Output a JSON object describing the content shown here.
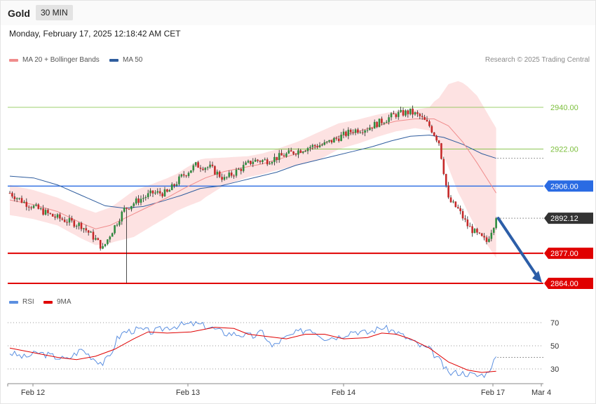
{
  "header": {
    "asset": "Gold",
    "timeframe": "30 MIN",
    "datetime": "Monday, February 17, 2025 12:18:42 AM CET"
  },
  "legend": {
    "ma20": "MA 20 + Bollinger Bands",
    "ma50": "MA 50",
    "credit": "Research © 2025 Trading Central"
  },
  "colors": {
    "ma20": "#f08c8c",
    "bands": "#fde2e2",
    "ma50": "#2f5d9e",
    "support": "#e00000",
    "resistance": "#7cbf3c",
    "pivot": "#2a6be3",
    "last": "#333333",
    "rsi": "#5b8fe0",
    "rsi_ma": "#e00000",
    "up": "#2e8b3e",
    "down": "#c62828",
    "arrow": "#2c5ea8"
  },
  "rsi_legend": {
    "rsi": "RSI",
    "ma": "9MA"
  },
  "chart_data": [
    {
      "type": "candlestick",
      "ylim": [
        2862,
        2955
      ],
      "x_labels": [
        "Feb 12",
        "Feb 13",
        "Feb 14",
        "Feb 17",
        "Mar 4"
      ],
      "levels": [
        {
          "label": "2940.00",
          "value": 2940.0,
          "kind": "resistance"
        },
        {
          "label": "2922.00",
          "value": 2922.0,
          "kind": "resistance"
        },
        {
          "label": "2906.00",
          "value": 2906.0,
          "kind": "pivot"
        },
        {
          "label": "2892.12",
          "value": 2892.12,
          "kind": "last"
        },
        {
          "label": "2877.00",
          "value": 2877.0,
          "kind": "support"
        },
        {
          "label": "2864.00",
          "value": 2864.0,
          "kind": "support"
        }
      ],
      "arrow": {
        "from": 2892.12,
        "to": 2864.0
      },
      "anchors": [
        [
          0,
          2903
        ],
        [
          6,
          2899
        ],
        [
          12,
          2896
        ],
        [
          18,
          2893
        ],
        [
          24,
          2891
        ],
        [
          30,
          2889
        ],
        [
          36,
          2883
        ],
        [
          39,
          2879
        ],
        [
          42,
          2885
        ],
        [
          48,
          2896
        ],
        [
          54,
          2900
        ],
        [
          60,
          2903
        ],
        [
          66,
          2903
        ],
        [
          72,
          2910
        ],
        [
          78,
          2915
        ],
        [
          84,
          2914
        ],
        [
          90,
          2909
        ],
        [
          96,
          2913
        ],
        [
          102,
          2917
        ],
        [
          108,
          2917
        ],
        [
          114,
          2919
        ],
        [
          120,
          2921
        ],
        [
          126,
          2923
        ],
        [
          132,
          2924
        ],
        [
          138,
          2927
        ],
        [
          144,
          2930
        ],
        [
          150,
          2931
        ],
        [
          156,
          2934
        ],
        [
          162,
          2937
        ],
        [
          168,
          2938
        ],
        [
          172,
          2936
        ],
        [
          176,
          2932
        ],
        [
          180,
          2925
        ],
        [
          184,
          2900
        ],
        [
          188,
          2896
        ],
        [
          192,
          2889
        ],
        [
          196,
          2885
        ],
        [
          200,
          2882
        ],
        [
          204,
          2892
        ]
      ],
      "ma50": [
        [
          0,
          2910.3
        ],
        [
          10,
          2909.5
        ],
        [
          20,
          2906.5
        ],
        [
          30,
          2902
        ],
        [
          40,
          2897.5
        ],
        [
          48,
          2896.5
        ],
        [
          56,
          2897.2
        ],
        [
          64,
          2899.5
        ],
        [
          72,
          2902
        ],
        [
          80,
          2905
        ],
        [
          88,
          2906
        ],
        [
          96,
          2908
        ],
        [
          104,
          2910
        ],
        [
          112,
          2912
        ],
        [
          120,
          2915
        ],
        [
          128,
          2917
        ],
        [
          136,
          2919
        ],
        [
          144,
          2921
        ],
        [
          152,
          2923
        ],
        [
          160,
          2925.5
        ],
        [
          168,
          2927.5
        ],
        [
          176,
          2928
        ],
        [
          182,
          2927
        ],
        [
          190,
          2924
        ],
        [
          198,
          2920
        ],
        [
          204,
          2918
        ]
      ],
      "ma20": [
        [
          0,
          2900
        ],
        [
          10,
          2898
        ],
        [
          20,
          2895
        ],
        [
          30,
          2890
        ],
        [
          36,
          2887.5
        ],
        [
          42,
          2889
        ],
        [
          50,
          2893
        ],
        [
          58,
          2897
        ],
        [
          66,
          2901
        ],
        [
          74,
          2905.5
        ],
        [
          82,
          2909.5
        ],
        [
          90,
          2912.3
        ],
        [
          98,
          2914
        ],
        [
          106,
          2915.6
        ],
        [
          114,
          2918
        ],
        [
          122,
          2920.5
        ],
        [
          130,
          2923.5
        ],
        [
          138,
          2927.5
        ],
        [
          146,
          2929.5
        ],
        [
          154,
          2932
        ],
        [
          162,
          2934
        ],
        [
          170,
          2935
        ],
        [
          178,
          2935
        ],
        [
          184,
          2932
        ],
        [
          190,
          2925
        ],
        [
          196,
          2916
        ],
        [
          204,
          2903
        ]
      ],
      "band_width": [
        [
          0,
          6.5
        ],
        [
          20,
          6
        ],
        [
          36,
          7
        ],
        [
          44,
          8
        ],
        [
          52,
          10
        ],
        [
          60,
          9
        ],
        [
          70,
          8
        ],
        [
          80,
          9
        ],
        [
          90,
          6
        ],
        [
          100,
          4.5
        ],
        [
          110,
          4.5
        ],
        [
          120,
          5
        ],
        [
          130,
          6
        ],
        [
          140,
          5.5
        ],
        [
          150,
          5
        ],
        [
          160,
          4.5
        ],
        [
          170,
          4
        ],
        [
          176,
          5
        ],
        [
          180,
          10
        ],
        [
          184,
          18
        ],
        [
          188,
          24
        ],
        [
          192,
          27
        ],
        [
          196,
          29
        ],
        [
          204,
          28
        ]
      ]
    },
    {
      "type": "line",
      "name": "RSI",
      "ylim": [
        20,
        80
      ],
      "y_ticks": [
        70,
        50,
        30
      ],
      "x_labels": [
        "Feb 12",
        "Feb 13",
        "Feb 14",
        "Feb 17",
        "Mar 4"
      ],
      "rsi": [
        [
          0,
          44
        ],
        [
          6,
          40
        ],
        [
          12,
          44
        ],
        [
          18,
          41
        ],
        [
          24,
          38
        ],
        [
          30,
          47
        ],
        [
          36,
          38
        ],
        [
          39,
          35
        ],
        [
          42,
          41
        ],
        [
          45,
          56
        ],
        [
          48,
          62
        ],
        [
          54,
          64
        ],
        [
          60,
          62
        ],
        [
          66,
          66
        ],
        [
          72,
          68
        ],
        [
          78,
          69
        ],
        [
          84,
          66
        ],
        [
          90,
          61
        ],
        [
          96,
          60
        ],
        [
          102,
          58
        ],
        [
          106,
          62
        ],
        [
          110,
          49
        ],
        [
          114,
          55
        ],
        [
          120,
          61
        ],
        [
          126,
          65
        ],
        [
          132,
          57
        ],
        [
          138,
          58
        ],
        [
          144,
          63
        ],
        [
          150,
          61
        ],
        [
          156,
          66
        ],
        [
          162,
          62
        ],
        [
          168,
          55
        ],
        [
          172,
          50
        ],
        [
          176,
          47
        ],
        [
          180,
          38
        ],
        [
          184,
          26
        ],
        [
          188,
          27
        ],
        [
          192,
          26
        ],
        [
          196,
          24
        ],
        [
          200,
          26
        ],
        [
          204,
          40
        ]
      ],
      "rsi_ma": [
        [
          0,
          48
        ],
        [
          10,
          44
        ],
        [
          20,
          40
        ],
        [
          28,
          38
        ],
        [
          36,
          41
        ],
        [
          44,
          47
        ],
        [
          52,
          56
        ],
        [
          58,
          62
        ],
        [
          66,
          61
        ],
        [
          76,
          62
        ],
        [
          86,
          66
        ],
        [
          94,
          65
        ],
        [
          100,
          60
        ],
        [
          108,
          58
        ],
        [
          116,
          56
        ],
        [
          124,
          60
        ],
        [
          132,
          60
        ],
        [
          140,
          56
        ],
        [
          150,
          57
        ],
        [
          156,
          61
        ],
        [
          162,
          60
        ],
        [
          168,
          56
        ],
        [
          176,
          48
        ],
        [
          184,
          36
        ],
        [
          192,
          29
        ],
        [
          198,
          27
        ],
        [
          204,
          28
        ]
      ]
    }
  ]
}
